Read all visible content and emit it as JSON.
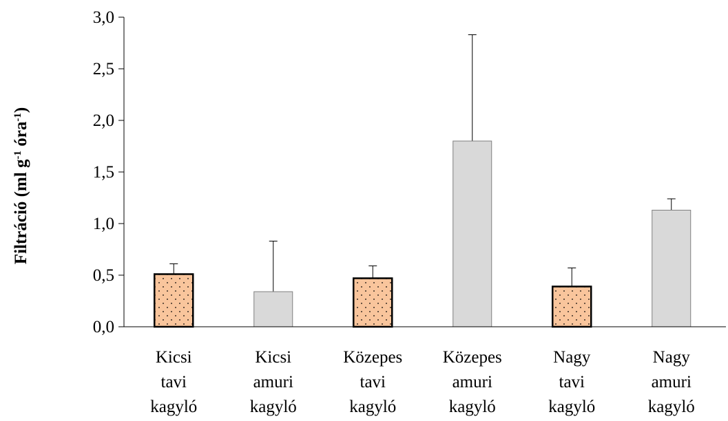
{
  "chart_data": {
    "type": "bar",
    "ylabel_parts": [
      "Filtráció  (ml g",
      "-1",
      " óra",
      "-1",
      ")"
    ],
    "categories": [
      [
        "Kicsi",
        "tavi",
        "kagyló"
      ],
      [
        "Kicsi",
        "amuri",
        "kagyló"
      ],
      [
        "Közepes",
        "tavi",
        "kagyló"
      ],
      [
        "Közepes",
        "amuri",
        "kagyló"
      ],
      [
        "Nagy",
        "tavi",
        "kagyló"
      ],
      [
        "Nagy",
        "amuri",
        "kagyló"
      ]
    ],
    "values": [
      0.51,
      0.34,
      0.47,
      1.8,
      0.39,
      1.13
    ],
    "errors": [
      0.1,
      0.49,
      0.12,
      1.03,
      0.18,
      0.11
    ],
    "colors": [
      "#f9c59c",
      "#d9d9d9",
      "#f9c59c",
      "#d9d9d9",
      "#f9c59c",
      "#d9d9d9"
    ],
    "dotted": [
      true,
      false,
      true,
      false,
      true,
      false
    ],
    "ylim": [
      0,
      3
    ],
    "yticks": [
      {
        "value": 0,
        "label": "0,0"
      },
      {
        "value": 0.5,
        "label": "0,5"
      },
      {
        "value": 1,
        "label": "1,0"
      },
      {
        "value": 1.5,
        "label": "1,5"
      },
      {
        "value": 2,
        "label": "2,0"
      },
      {
        "value": 2.5,
        "label": "2,5"
      },
      {
        "value": 3,
        "label": "3,0"
      }
    ]
  }
}
